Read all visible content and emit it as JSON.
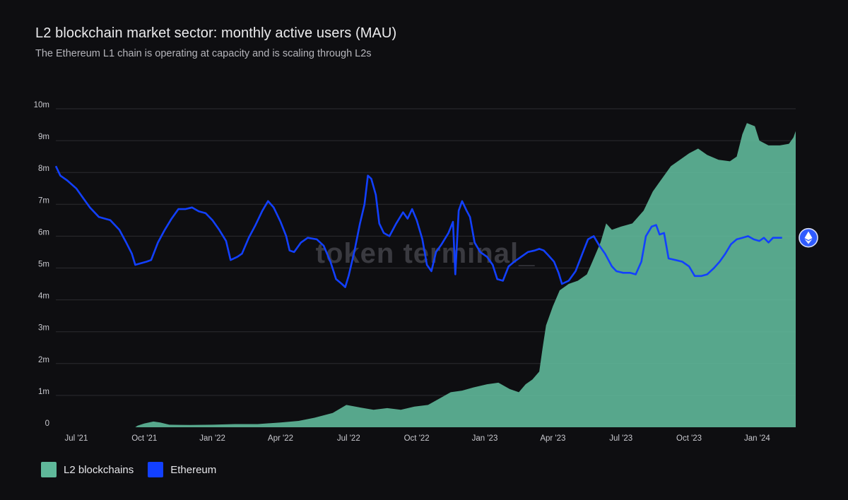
{
  "chart_data": {
    "type": "area+line",
    "title": "L2 blockchain market sector: monthly active users (MAU)",
    "subtitle": "The Ethereum L1 chain is operating at capacity and is scaling through L2s",
    "watermark": "token terminal_",
    "y_ticks": [
      "0",
      "1m",
      "2m",
      "3m",
      "4m",
      "5m",
      "6m",
      "7m",
      "8m",
      "9m",
      "10m"
    ],
    "ylim": [
      0,
      10
    ],
    "x_ticks": [
      {
        "label": "Jul '21",
        "t": 1.5
      },
      {
        "label": "Oct '21",
        "t": 4.5
      },
      {
        "label": "Jan '22",
        "t": 7.5
      },
      {
        "label": "Apr '22",
        "t": 10.5
      },
      {
        "label": "Jul '22",
        "t": 13.5
      },
      {
        "label": "Oct '22",
        "t": 16.5
      },
      {
        "label": "Jan '23",
        "t": 19.5
      },
      {
        "label": "Apr '23",
        "t": 22.5
      },
      {
        "label": "Jul '23",
        "t": 25.5
      },
      {
        "label": "Oct '23",
        "t": 28.5
      },
      {
        "label": "Jan '24",
        "t": 31.5
      }
    ],
    "xlim": [
      0.6,
      33.2
    ],
    "colors": {
      "l2": "#5fb89a",
      "ethereum": "#1240ff",
      "grid": "#2c2c31"
    },
    "series": [
      {
        "name": "L2 blockchains",
        "kind": "area",
        "points": [
          [
            0.6,
            0
          ],
          [
            4.1,
            0
          ],
          [
            4.2,
            0.05
          ],
          [
            4.5,
            0.12
          ],
          [
            4.9,
            0.18
          ],
          [
            5.2,
            0.15
          ],
          [
            5.6,
            0.08
          ],
          [
            6.5,
            0.07
          ],
          [
            7.5,
            0.08
          ],
          [
            8.5,
            0.1
          ],
          [
            9.5,
            0.1
          ],
          [
            10.5,
            0.15
          ],
          [
            11.3,
            0.2
          ],
          [
            12,
            0.3
          ],
          [
            12.8,
            0.45
          ],
          [
            13.4,
            0.7
          ],
          [
            14,
            0.62
          ],
          [
            14.6,
            0.55
          ],
          [
            15.2,
            0.6
          ],
          [
            15.8,
            0.55
          ],
          [
            16.4,
            0.65
          ],
          [
            17,
            0.7
          ],
          [
            17.5,
            0.9
          ],
          [
            18,
            1.1
          ],
          [
            18.5,
            1.15
          ],
          [
            19,
            1.25
          ],
          [
            19.6,
            1.35
          ],
          [
            20.1,
            1.4
          ],
          [
            20.6,
            1.2
          ],
          [
            21,
            1.1
          ],
          [
            21.3,
            1.35
          ],
          [
            21.6,
            1.5
          ],
          [
            21.9,
            1.75
          ],
          [
            22.05,
            2.5
          ],
          [
            22.2,
            3.2
          ],
          [
            22.5,
            3.8
          ],
          [
            22.8,
            4.3
          ],
          [
            23.2,
            4.5
          ],
          [
            23.6,
            4.6
          ],
          [
            24,
            4.8
          ],
          [
            24.3,
            5.3
          ],
          [
            24.6,
            5.8
          ],
          [
            24.85,
            6.4
          ],
          [
            25.1,
            6.2
          ],
          [
            25.5,
            6.3
          ],
          [
            26,
            6.4
          ],
          [
            26.5,
            6.8
          ],
          [
            26.9,
            7.4
          ],
          [
            27.3,
            7.8
          ],
          [
            27.7,
            8.2
          ],
          [
            28.1,
            8.4
          ],
          [
            28.5,
            8.6
          ],
          [
            28.9,
            8.75
          ],
          [
            29.3,
            8.55
          ],
          [
            29.8,
            8.4
          ],
          [
            30.3,
            8.35
          ],
          [
            30.6,
            8.5
          ],
          [
            30.85,
            9.2
          ],
          [
            31.05,
            9.55
          ],
          [
            31.4,
            9.45
          ],
          [
            31.6,
            9.0
          ],
          [
            32,
            8.85
          ],
          [
            32.5,
            8.85
          ],
          [
            32.9,
            8.9
          ],
          [
            33.1,
            9.1
          ],
          [
            33.2,
            9.3
          ],
          [
            33.2,
            0
          ]
        ]
      },
      {
        "name": "Ethereum",
        "kind": "line",
        "points": [
          [
            0.6,
            8.2
          ],
          [
            0.8,
            7.9
          ],
          [
            1.1,
            7.75
          ],
          [
            1.5,
            7.5
          ],
          [
            1.8,
            7.2
          ],
          [
            2.1,
            6.9
          ],
          [
            2.5,
            6.6
          ],
          [
            3,
            6.5
          ],
          [
            3.4,
            6.2
          ],
          [
            3.7,
            5.8
          ],
          [
            3.95,
            5.45
          ],
          [
            4.1,
            5.1
          ],
          [
            4.35,
            5.15
          ],
          [
            4.6,
            5.2
          ],
          [
            4.8,
            5.25
          ],
          [
            5.1,
            5.8
          ],
          [
            5.4,
            6.2
          ],
          [
            5.7,
            6.55
          ],
          [
            6,
            6.85
          ],
          [
            6.3,
            6.85
          ],
          [
            6.6,
            6.9
          ],
          [
            6.9,
            6.78
          ],
          [
            7.2,
            6.72
          ],
          [
            7.5,
            6.5
          ],
          [
            7.8,
            6.2
          ],
          [
            8.1,
            5.85
          ],
          [
            8.3,
            5.25
          ],
          [
            8.6,
            5.35
          ],
          [
            8.8,
            5.45
          ],
          [
            9.1,
            5.95
          ],
          [
            9.4,
            6.35
          ],
          [
            9.7,
            6.8
          ],
          [
            9.95,
            7.1
          ],
          [
            10.2,
            6.9
          ],
          [
            10.5,
            6.45
          ],
          [
            10.75,
            6.0
          ],
          [
            10.9,
            5.55
          ],
          [
            11.1,
            5.5
          ],
          [
            11.4,
            5.8
          ],
          [
            11.7,
            5.95
          ],
          [
            12.1,
            5.9
          ],
          [
            12.4,
            5.7
          ],
          [
            12.7,
            5.2
          ],
          [
            12.95,
            4.65
          ],
          [
            13.2,
            4.5
          ],
          [
            13.35,
            4.4
          ],
          [
            13.5,
            4.75
          ],
          [
            13.75,
            5.5
          ],
          [
            14,
            6.4
          ],
          [
            14.2,
            7.0
          ],
          [
            14.35,
            7.9
          ],
          [
            14.5,
            7.8
          ],
          [
            14.7,
            7.3
          ],
          [
            14.85,
            6.4
          ],
          [
            15.05,
            6.1
          ],
          [
            15.3,
            6.0
          ],
          [
            15.6,
            6.4
          ],
          [
            15.9,
            6.75
          ],
          [
            16.1,
            6.55
          ],
          [
            16.3,
            6.85
          ],
          [
            16.5,
            6.5
          ],
          [
            16.75,
            5.9
          ],
          [
            16.95,
            5.1
          ],
          [
            17.15,
            4.9
          ],
          [
            17.35,
            5.5
          ],
          [
            17.6,
            5.75
          ],
          [
            17.9,
            6.1
          ],
          [
            18.1,
            6.45
          ],
          [
            18.2,
            4.8
          ],
          [
            18.35,
            6.8
          ],
          [
            18.5,
            7.1
          ],
          [
            18.7,
            6.8
          ],
          [
            18.85,
            6.6
          ],
          [
            19.05,
            5.8
          ],
          [
            19.3,
            5.5
          ],
          [
            19.6,
            5.35
          ],
          [
            19.85,
            5.1
          ],
          [
            20.05,
            4.65
          ],
          [
            20.3,
            4.6
          ],
          [
            20.55,
            5.05
          ],
          [
            20.8,
            5.2
          ],
          [
            21.1,
            5.35
          ],
          [
            21.4,
            5.5
          ],
          [
            21.7,
            5.55
          ],
          [
            21.9,
            5.6
          ],
          [
            22.1,
            5.55
          ],
          [
            22.3,
            5.4
          ],
          [
            22.55,
            5.2
          ],
          [
            22.75,
            4.85
          ],
          [
            22.9,
            4.5
          ],
          [
            23.2,
            4.6
          ],
          [
            23.5,
            4.9
          ],
          [
            23.8,
            5.45
          ],
          [
            24.05,
            5.9
          ],
          [
            24.3,
            6.0
          ],
          [
            24.55,
            5.7
          ],
          [
            24.8,
            5.45
          ],
          [
            25.1,
            5.05
          ],
          [
            25.3,
            4.9
          ],
          [
            25.6,
            4.85
          ],
          [
            25.9,
            4.85
          ],
          [
            26.15,
            4.8
          ],
          [
            26.4,
            5.2
          ],
          [
            26.6,
            6.0
          ],
          [
            26.85,
            6.3
          ],
          [
            27.05,
            6.35
          ],
          [
            27.2,
            6.05
          ],
          [
            27.4,
            6.1
          ],
          [
            27.6,
            5.3
          ],
          [
            27.9,
            5.25
          ],
          [
            28.2,
            5.2
          ],
          [
            28.5,
            5.05
          ],
          [
            28.75,
            4.75
          ],
          [
            29.05,
            4.75
          ],
          [
            29.3,
            4.8
          ],
          [
            29.6,
            5.0
          ],
          [
            29.85,
            5.2
          ],
          [
            30.1,
            5.45
          ],
          [
            30.35,
            5.75
          ],
          [
            30.6,
            5.9
          ],
          [
            30.85,
            5.95
          ],
          [
            31.1,
            6.0
          ],
          [
            31.35,
            5.9
          ],
          [
            31.6,
            5.85
          ],
          [
            31.8,
            5.95
          ],
          [
            32,
            5.8
          ],
          [
            32.2,
            5.95
          ],
          [
            32.4,
            5.95
          ],
          [
            32.6,
            5.95
          ]
        ]
      }
    ],
    "legend": [
      {
        "label": "L2 blockchains",
        "color": "#5fb89a"
      },
      {
        "label": "Ethereum",
        "color": "#1240ff"
      }
    ]
  }
}
